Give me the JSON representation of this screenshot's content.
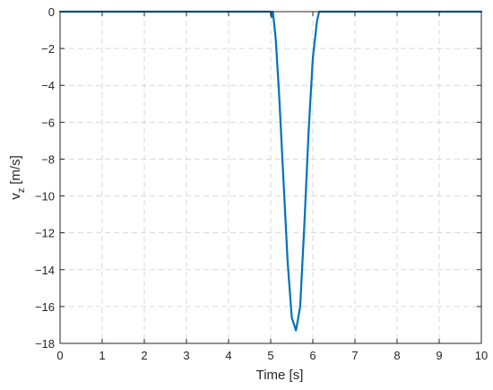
{
  "chart_data": {
    "type": "line",
    "title": "",
    "xlabel": "Time [s]",
    "ylabel_main": "v",
    "ylabel_sub": "z",
    "ylabel_unit": "[m/s]",
    "xlim": [
      0,
      10
    ],
    "ylim": [
      -18,
      0
    ],
    "grid": true,
    "x_ticks": [
      0,
      1,
      2,
      3,
      4,
      5,
      6,
      7,
      8,
      9,
      10
    ],
    "y_ticks": [
      0,
      -2,
      -4,
      -6,
      -8,
      -10,
      -12,
      -14,
      -16,
      -18
    ],
    "x_tick_labels": [
      "0",
      "1",
      "2",
      "3",
      "4",
      "5",
      "6",
      "7",
      "8",
      "9",
      "10"
    ],
    "y_tick_labels": [
      "0",
      "−2",
      "−4",
      "−6",
      "−8",
      "−10",
      "−12",
      "−14",
      "−16",
      "−18"
    ],
    "series": [
      {
        "color": "#0072bd",
        "x": [
          0,
          5.0,
          5.02,
          5.05,
          5.08,
          5.12,
          5.2,
          5.3,
          5.4,
          5.5,
          5.6,
          5.7,
          5.8,
          5.9,
          6.0,
          6.1,
          6.15,
          6.2,
          7,
          8,
          9,
          10
        ],
        "y": [
          0,
          0,
          -0.3,
          0,
          -0.6,
          -1.5,
          -4.5,
          -9.0,
          -13.5,
          -16.6,
          -17.3,
          -16.0,
          -11.5,
          -6.5,
          -2.5,
          -0.5,
          0,
          0,
          0,
          0,
          0,
          0
        ]
      }
    ]
  }
}
